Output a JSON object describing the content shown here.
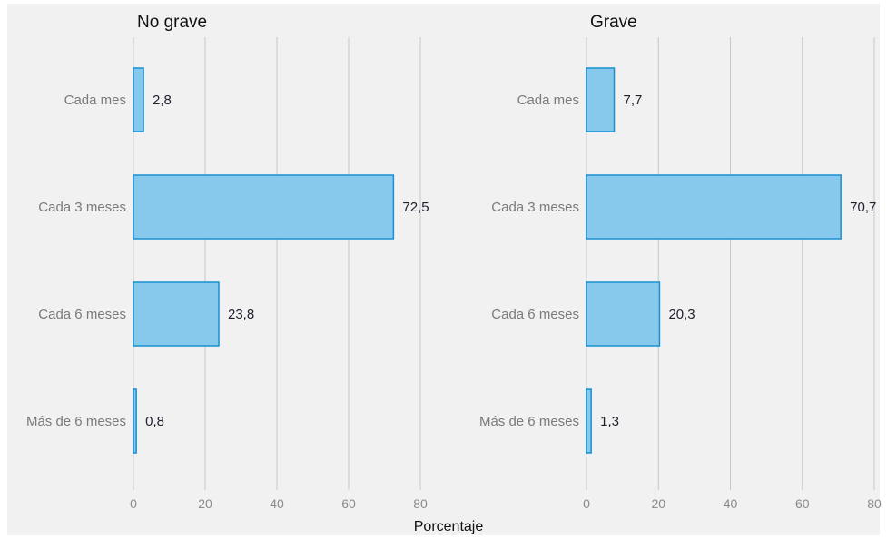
{
  "xlabel": "Porcentaje",
  "colors": {
    "bar_fill": "#87c9ec",
    "bar_stroke": "#1a8fd0",
    "grid": "#c8c8c8",
    "background": "#f1f1f1"
  },
  "chart_data": [
    {
      "type": "bar",
      "orientation": "horizontal",
      "title": "No grave",
      "categories": [
        "Cada mes",
        "Cada 3 meses",
        "Cada 6 meses",
        "Más de 6 meses"
      ],
      "values": [
        2.8,
        72.5,
        23.8,
        0.8
      ],
      "value_labels": [
        "2,8",
        "72,5",
        "23,8",
        "0,8"
      ],
      "xlim": [
        0,
        80
      ],
      "xticks": [
        0,
        20,
        40,
        60,
        80
      ],
      "grid": true
    },
    {
      "type": "bar",
      "orientation": "horizontal",
      "title": "Grave",
      "categories": [
        "Cada mes",
        "Cada 3 meses",
        "Cada 6 meses",
        "Más de 6 meses"
      ],
      "values": [
        7.7,
        70.7,
        20.3,
        1.3
      ],
      "value_labels": [
        "7,7",
        "70,7",
        "20,3",
        "1,3"
      ],
      "xlim": [
        0,
        80
      ],
      "xticks": [
        0,
        20,
        40,
        60,
        80
      ],
      "grid": true
    }
  ]
}
